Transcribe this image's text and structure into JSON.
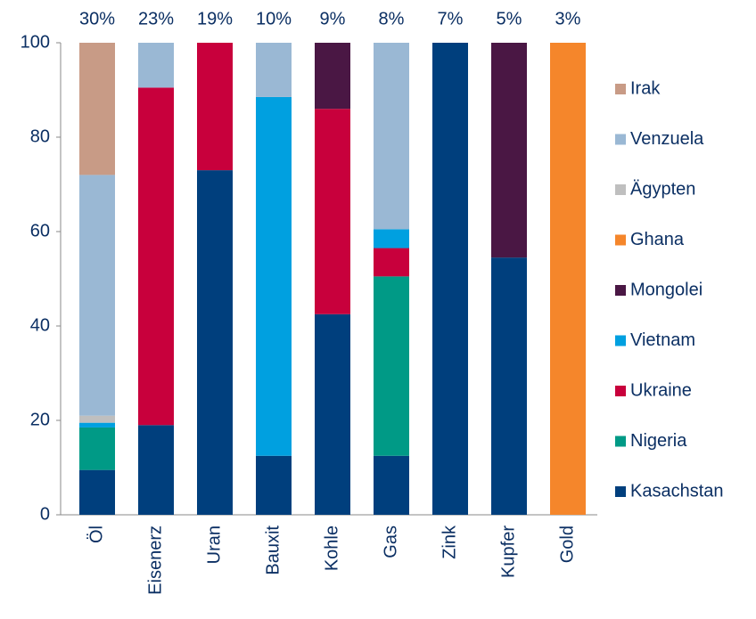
{
  "chart_data": {
    "type": "stacked_bar",
    "categories": [
      "Öl",
      "Eisenerz",
      "Uran",
      "Bauxit",
      "Kohle",
      "Gas",
      "Zink",
      "Kupfer",
      "Gold"
    ],
    "shares": [
      30,
      23,
      19,
      10,
      9,
      8,
      7,
      5,
      3
    ],
    "share_labels": [
      "30%",
      "23%",
      "19%",
      "10%",
      "9%",
      "8%",
      "7%",
      "5%",
      "3%"
    ],
    "series": [
      {
        "name": "Kasachstan",
        "color": "#003f7d",
        "values": [
          9.5,
          19,
          73,
          12.5,
          42.5,
          12.5,
          100,
          54.5,
          null
        ]
      },
      {
        "name": "Nigeria",
        "color": "#009a86",
        "values": [
          9,
          null,
          null,
          null,
          null,
          38,
          null,
          null,
          null
        ]
      },
      {
        "name": "Ukraine",
        "color": "#c8003c",
        "values": [
          null,
          71.5,
          27,
          null,
          43.5,
          6,
          null,
          null,
          null
        ]
      },
      {
        "name": "Vietnam",
        "color": "#00a0e0",
        "values": [
          1,
          null,
          null,
          76,
          null,
          4,
          null,
          null,
          null
        ]
      },
      {
        "name": "Mongolei",
        "color": "#4a1744",
        "values": [
          null,
          null,
          null,
          null,
          14,
          null,
          null,
          45.5,
          null
        ]
      },
      {
        "name": "Ghana",
        "color": "#f5862b",
        "values": [
          null,
          null,
          null,
          null,
          null,
          null,
          null,
          null,
          100
        ]
      },
      {
        "name": "Ägypten",
        "color": "#bfbfbf",
        "values": [
          1.5,
          null,
          null,
          null,
          null,
          null,
          null,
          null,
          null
        ]
      },
      {
        "name": "Venzuela",
        "color": "#9ab8d4",
        "values": [
          51,
          9.5,
          null,
          11.5,
          null,
          39.5,
          null,
          null,
          null
        ]
      },
      {
        "name": "Irak",
        "color": "#c89b86",
        "values": [
          28,
          null,
          null,
          null,
          null,
          null,
          null,
          null,
          null
        ]
      }
    ],
    "ylim": [
      0,
      100
    ],
    "yticks": [
      0,
      20,
      40,
      60,
      80,
      100
    ],
    "legend": "right"
  }
}
